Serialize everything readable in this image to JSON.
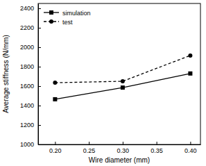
{
  "chart_data": {
    "type": "line",
    "x_label": "Wire diameter (mm)",
    "y_label": "Average stiffness (N/mm)",
    "x": [
      0.2,
      0.3,
      0.4
    ],
    "series": [
      {
        "name": "simulation",
        "color": "#000000",
        "marker": "square",
        "line_style": "solid",
        "values": [
          1465,
          1585,
          1730
        ]
      },
      {
        "name": "test",
        "color": "#000000",
        "marker": "circle",
        "line_style": "dashed",
        "values": [
          1635,
          1650,
          1915
        ]
      }
    ],
    "xlim": [
      0.175,
      0.415
    ],
    "xticks": [
      {
        "value": 0.2,
        "label": "0.20"
      },
      {
        "value": 0.25,
        "label": "0.25"
      },
      {
        "value": 0.3,
        "label": "0.30"
      },
      {
        "value": 0.35,
        "label": "0.35"
      },
      {
        "value": 0.4,
        "label": "0.40"
      }
    ],
    "ylim": [
      1000,
      2450
    ],
    "yticks": [
      1000,
      1200,
      1400,
      1600,
      1800,
      2000,
      2200,
      2400
    ],
    "legend": "upper left",
    "grid": false
  }
}
